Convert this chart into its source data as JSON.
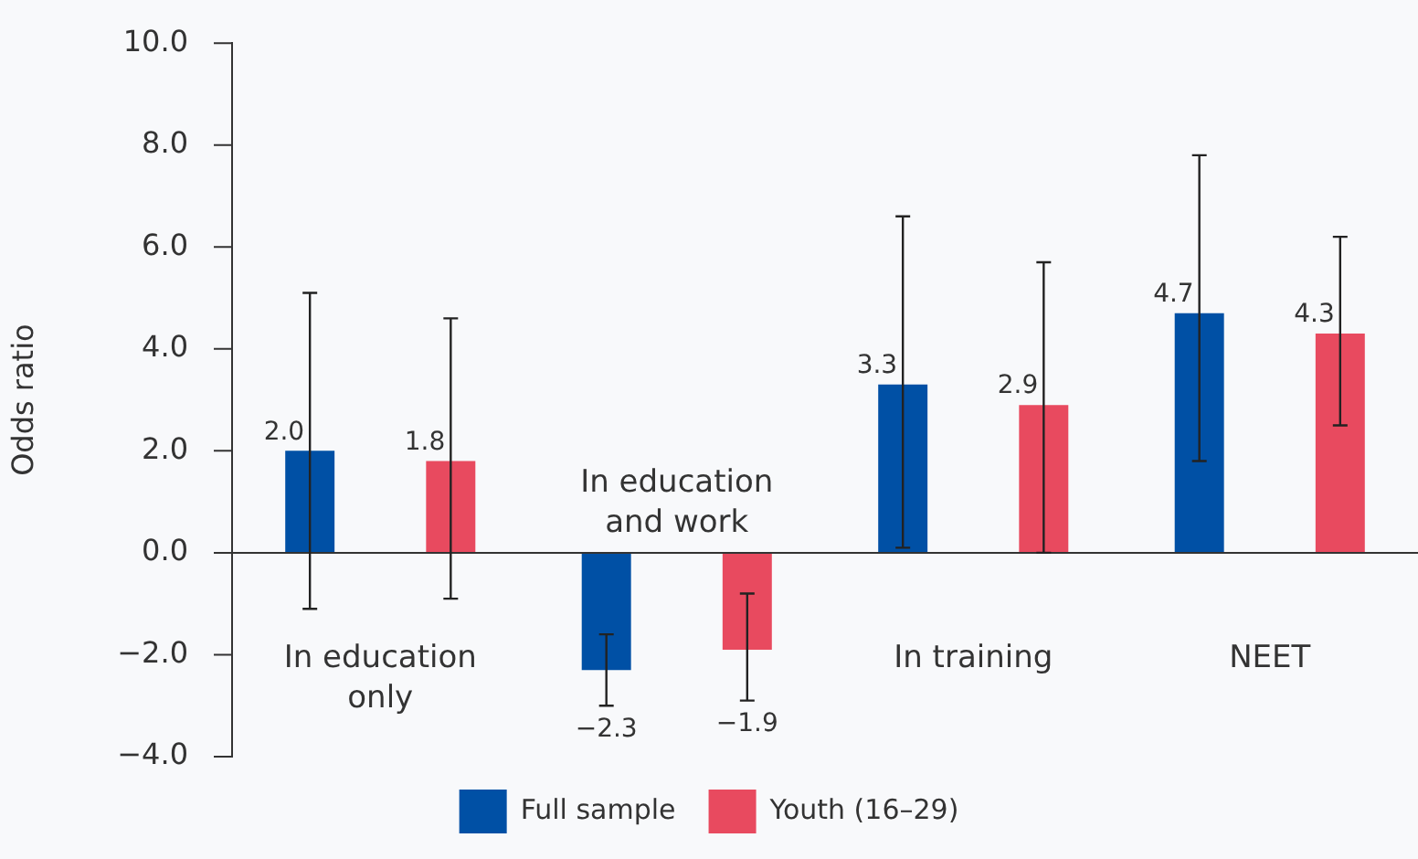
{
  "chart_data": {
    "type": "bar",
    "ylabel": "Odds ratio",
    "categories": [
      "In education only",
      "In education and work",
      "In training",
      "NEET"
    ],
    "series": [
      {
        "name": "Full sample",
        "color": "#0050a5",
        "values": [
          2.0,
          -2.3,
          3.3,
          4.7
        ],
        "errors": [
          [
            -1.1,
            5.1
          ],
          [
            -3.0,
            -1.6
          ],
          [
            0.1,
            6.6
          ],
          [
            1.8,
            7.8
          ]
        ],
        "value_labels": [
          "2.0",
          "−2.3",
          "3.3",
          "4.7"
        ]
      },
      {
        "name": "Youth (16–29)",
        "color": "#e84a5f",
        "values": [
          1.8,
          -1.9,
          2.9,
          4.3
        ],
        "errors": [
          [
            -0.9,
            4.6
          ],
          [
            -2.9,
            -0.8
          ],
          [
            0.0,
            5.7
          ],
          [
            2.5,
            6.2
          ]
        ],
        "value_labels": [
          "1.8",
          "−1.9",
          "2.9",
          "4.3"
        ]
      }
    ],
    "ylim": [
      -4,
      10
    ],
    "yticks": [
      {
        "value": -4,
        "label": "−4.0"
      },
      {
        "value": -2,
        "label": "−2.0"
      },
      {
        "value": 0,
        "label": "0.0"
      },
      {
        "value": 2,
        "label": "2.0"
      },
      {
        "value": 4,
        "label": "4.0"
      },
      {
        "value": 6,
        "label": "6.0"
      },
      {
        "value": 8,
        "label": "8.0"
      },
      {
        "value": 10,
        "label": "10.0"
      }
    ],
    "ref_lines": [
      {
        "axis": "y",
        "value": 0,
        "color": "#333333"
      }
    ],
    "grid": false,
    "legend": "bottom"
  }
}
